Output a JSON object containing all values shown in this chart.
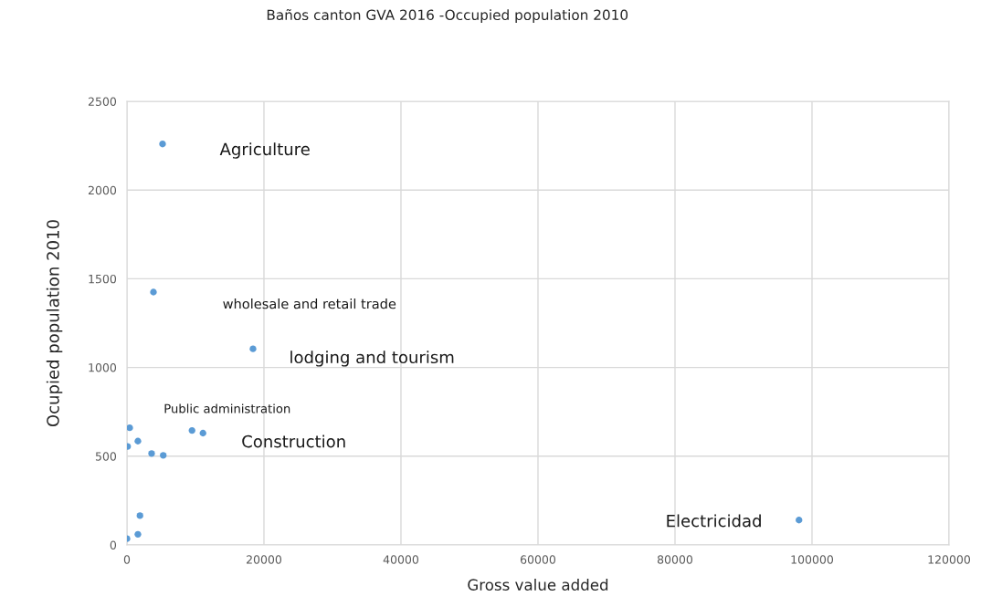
{
  "chart_data": {
    "type": "scatter",
    "title": "Baños canton GVA 2016 -Occupied population 2010",
    "xlabel": "Gross value added",
    "ylabel": "Ocupied population 2010",
    "x": [
      5200,
      3870,
      18400,
      400,
      100,
      1600,
      3600,
      5300,
      9500,
      11100,
      1900,
      1600,
      0,
      98100
    ],
    "series": [
      {
        "color": "#5b9bd5",
        "values": [
          2260,
          1425,
          1105,
          660,
          555,
          585,
          515,
          505,
          645,
          630,
          165,
          60,
          35,
          140
        ]
      }
    ],
    "xlim": [
      0,
      120000
    ],
    "xticks": [
      0,
      20000,
      40000,
      60000,
      80000,
      100000,
      120000
    ],
    "ylim": [
      0,
      2500
    ],
    "yticks": [
      0,
      500,
      1000,
      1500,
      2000,
      2500
    ],
    "grid": true,
    "marker": "circle",
    "annotations": [
      "Agriculture",
      "wholesale and retail trade",
      "lodging and tourism",
      "Public administration",
      "Construction",
      "Electricidad"
    ]
  }
}
